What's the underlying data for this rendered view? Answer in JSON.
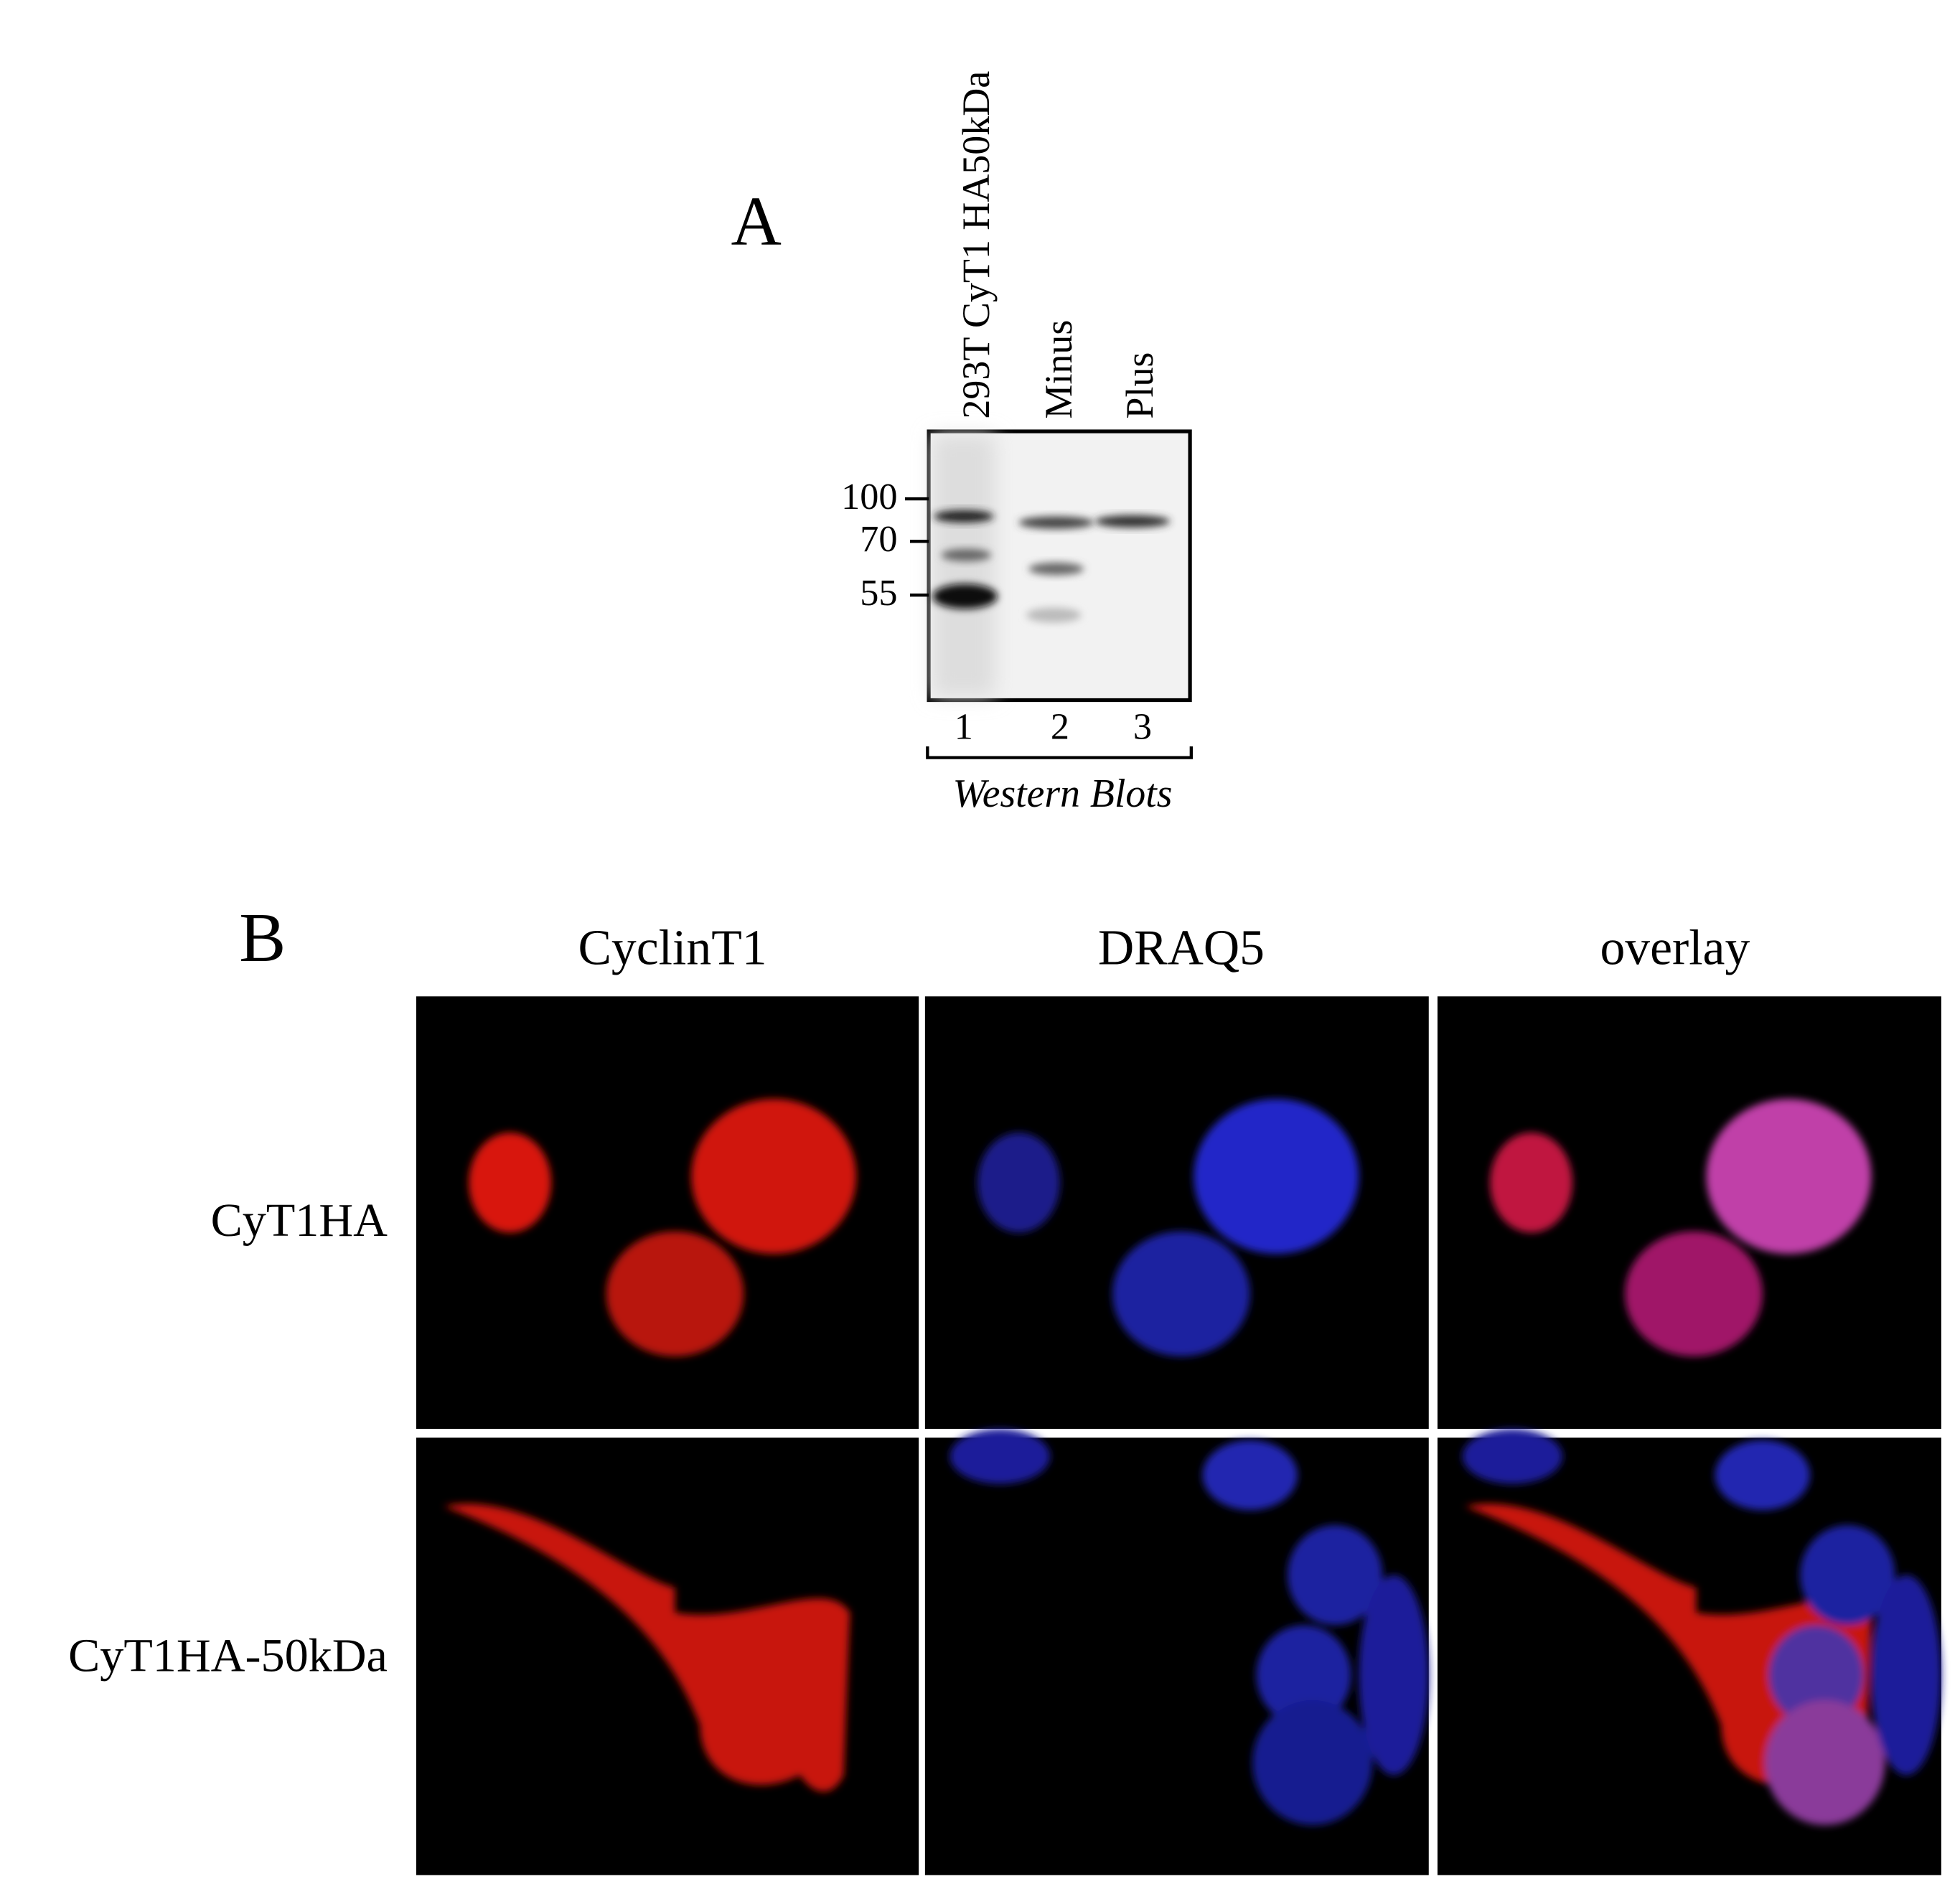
{
  "panel_a": {
    "label": "A",
    "lanes": [
      "293T CyT1 HA50kDa",
      "Minus",
      "Plus"
    ],
    "markers": [
      "100",
      "70",
      "55"
    ],
    "lane_numbers": [
      "1",
      "2",
      "3"
    ],
    "caption": "Western Blots"
  },
  "panel_b": {
    "label": "B",
    "columns": [
      "CyclinT1",
      "DRAQ5",
      "overlay"
    ],
    "rows": [
      "CyT1HA",
      "CyT1HA-50kDa"
    ]
  }
}
